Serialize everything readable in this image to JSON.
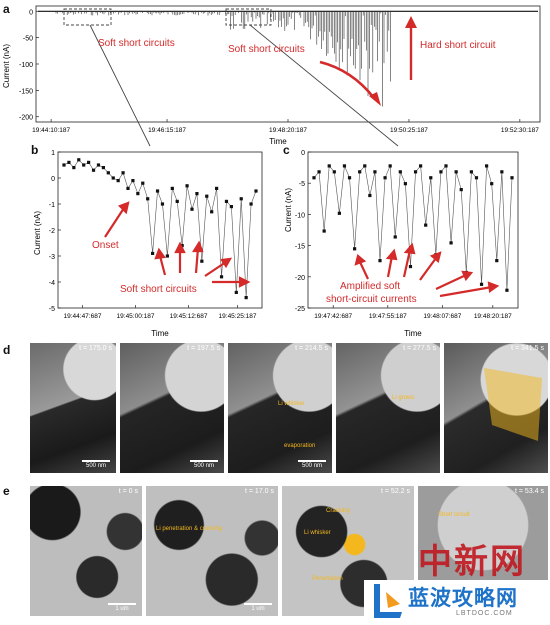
{
  "panels": {
    "a": {
      "label": "a",
      "ylabel": "Current (nA)",
      "xlabel": "Time",
      "yticks": [
        "0",
        "-50",
        "-100",
        "-150",
        "-200"
      ],
      "xticks": [
        "19:44:10:187",
        "19:46:15:187",
        "19:48:20:187",
        "19:50:25:187",
        "19:52:30:187"
      ],
      "annotations": {
        "soft1": "Soft short circuits",
        "soft2": "Soft short circuits",
        "hard": "Hard short circuit"
      }
    },
    "b": {
      "label": "b",
      "ylabel": "Current (nA)",
      "xlabel": "Time",
      "yticks": [
        "1",
        "0",
        "-1",
        "-2",
        "-3",
        "-4",
        "-5"
      ],
      "xticks": [
        "19:44:47:687",
        "19:45:00:187",
        "19:45:12:687",
        "19:45:25:187"
      ],
      "annotations": {
        "onset": "Onset",
        "soft": "Soft short circuits"
      }
    },
    "c": {
      "label": "c",
      "ylabel": "Current (nA)",
      "xlabel": "Time",
      "yticks": [
        "0",
        "-5",
        "-10",
        "-15",
        "-20",
        "-25"
      ],
      "xticks": [
        "19:47:42:687",
        "19:47:55:187",
        "19:48:07:687",
        "19:48:20:187"
      ],
      "annotations": {
        "amp1": "Amplified soft",
        "amp2": "short-circuit currents"
      }
    },
    "d": {
      "label": "d",
      "frames": [
        {
          "time": "t = 175.0 s",
          "scale": "500 nm",
          "notes": []
        },
        {
          "time": "t = 197.5 s",
          "scale": "500 nm",
          "notes": []
        },
        {
          "time": "t = 214.5 s",
          "scale": "500 nm",
          "notes": [
            "Li whisker",
            "evaporation"
          ]
        },
        {
          "time": "t = 277.5 s",
          "scale": "",
          "notes": [
            "Li grows"
          ]
        },
        {
          "time": "t = 341.5 s",
          "scale": "",
          "notes": []
        }
      ]
    },
    "e": {
      "label": "e",
      "frames": [
        {
          "time": "t = 0 s",
          "scale": "1 um",
          "notes": []
        },
        {
          "time": "t = 17.0 s",
          "scale": "1 um",
          "notes": [
            "Li penetration & cracking"
          ]
        },
        {
          "time": "t = 52.2 s",
          "scale": "",
          "notes": [
            "Cracking",
            "Li whisker",
            "Penetration"
          ]
        },
        {
          "time": "t = 53.4 s",
          "scale": "",
          "notes": [
            "Short circuit"
          ]
        }
      ]
    }
  },
  "watermark": {
    "cn_news": "中新网",
    "cn_site": "蓝波攻略网",
    "domain": "LBTDOC.COM"
  },
  "colors": {
    "accent_red": "#d42a2a",
    "annotation_yellow": "#f4b81e",
    "axis": "#222222"
  },
  "chart_data": [
    {
      "type": "line",
      "title": "",
      "xlabel": "Time",
      "ylabel": "Current (nA)",
      "x_ticks": [
        "19:44:10:187",
        "19:46:15:187",
        "19:48:20:187",
        "19:50:25:187",
        "19:52:30:187"
      ],
      "ylim": [
        -210,
        10
      ],
      "series": [
        {
          "x_seconds_range": [
            0,
            510
          ],
          "values_summary": "baseline ~0 nA until ~19:48:20, then spikes growing to about -200 nA near 19:50:25, hard short after"
        }
      ]
    },
    {
      "type": "scatter",
      "title": "",
      "xlabel": "Time",
      "ylabel": "Current (nA)",
      "x_ticks": [
        "19:44:47:687",
        "19:45:00:187",
        "19:45:12:687",
        "19:45:25:187"
      ],
      "ylim": [
        -5,
        1
      ],
      "series": [
        {
          "values": [
            0.5,
            0.6,
            0.4,
            0.7,
            0.5,
            0.6,
            0.3,
            0.5,
            0.4,
            0.2,
            0.0,
            -0.1,
            0.2,
            -0.4,
            -0.1,
            -0.6,
            -0.2,
            -0.8,
            -2.9,
            -0.5,
            -1.0,
            -3.0,
            -0.4,
            -0.9,
            -2.6,
            -0.3,
            -1.2,
            -0.6,
            -3.2,
            -0.7,
            -1.3,
            -0.4,
            -3.8,
            -0.9,
            -1.1,
            -4.4,
            -0.8,
            -4.6,
            -1.0,
            -0.5
          ]
        }
      ]
    },
    {
      "type": "scatter",
      "title": "",
      "xlabel": "Time",
      "ylabel": "Current (nA)",
      "x_ticks": [
        "19:47:42:687",
        "19:47:55:187",
        "19:48:07:687",
        "19:48:20:187"
      ],
      "ylim": [
        -25,
        0
      ],
      "series": [
        {
          "values": [
            -3,
            -2,
            -12,
            -1,
            -2,
            -9,
            -1,
            -3,
            -15,
            -2,
            -1,
            -6,
            -2,
            -17,
            -3,
            -1,
            -13,
            -2,
            -4,
            -18,
            -2,
            -1,
            -11,
            -3,
            -16,
            -2,
            -1,
            -14,
            -2,
            -5,
            -19,
            -2,
            -3,
            -21,
            -1,
            -4,
            -17,
            -2,
            -22,
            -3
          ]
        }
      ]
    }
  ]
}
